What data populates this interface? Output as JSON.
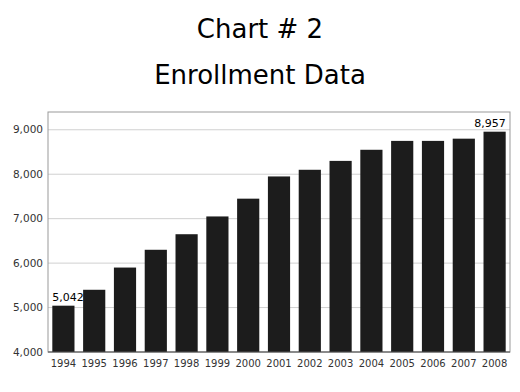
{
  "chart_data": {
    "type": "bar",
    "title": "Chart # 2",
    "subtitle": "Enrollment Data",
    "categories": [
      "1994",
      "1995",
      "1996",
      "1997",
      "1998",
      "1999",
      "2000",
      "2001",
      "2002",
      "2003",
      "2004",
      "2005",
      "2006",
      "2007",
      "2008"
    ],
    "values": [
      5042,
      5400,
      5900,
      6300,
      6650,
      7050,
      7450,
      7950,
      8100,
      8300,
      8550,
      8750,
      8750,
      8800,
      8957
    ],
    "value_labels": [
      "5,042",
      null,
      null,
      null,
      null,
      null,
      null,
      null,
      null,
      null,
      null,
      null,
      null,
      null,
      "8,957"
    ],
    "data_labels": true,
    "color": "#1c1c1c",
    "ylim": [
      4000,
      9400
    ],
    "yticks": [
      {
        "value": 4000,
        "label": "4,000"
      },
      {
        "value": 5000,
        "label": "5,000"
      },
      {
        "value": 6000,
        "label": "6,000"
      },
      {
        "value": 7000,
        "label": "7,000"
      },
      {
        "value": 8000,
        "label": "8,000"
      },
      {
        "value": 9000,
        "label": "9,000"
      }
    ],
    "grid": true
  }
}
